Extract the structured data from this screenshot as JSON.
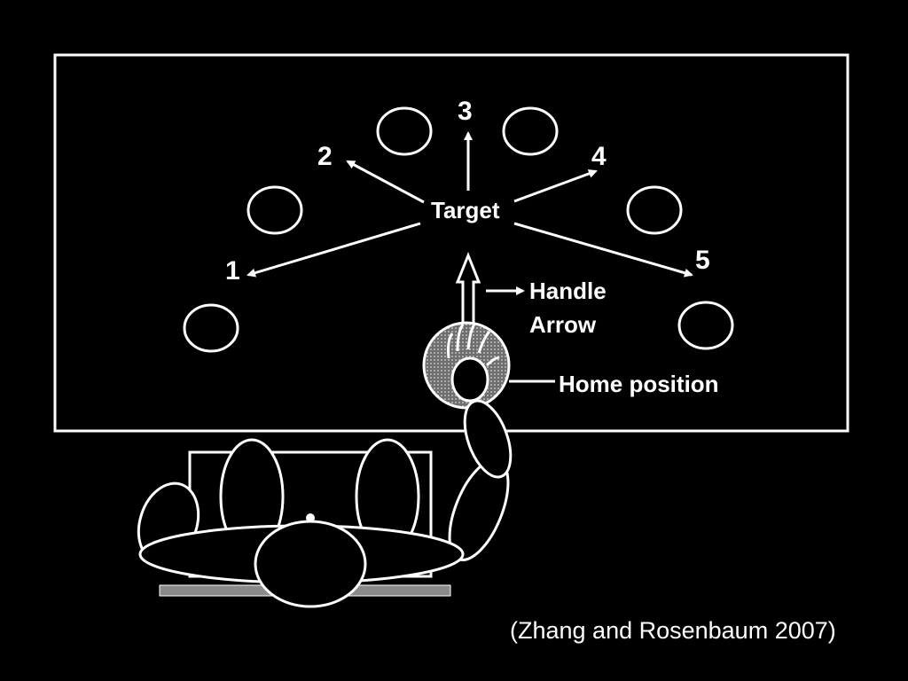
{
  "diagram": {
    "targets": [
      {
        "number": "1"
      },
      {
        "number": "2"
      },
      {
        "number": "3"
      },
      {
        "number": "4"
      },
      {
        "number": "5"
      }
    ],
    "target_label": "Target",
    "handle_label": "Handle",
    "arrow_label": "Arrow",
    "home_label": "Home position",
    "citation": "(Zhang and Rosenbaum 2007)"
  },
  "colors": {
    "background": "#000000",
    "foreground": "#ffffff",
    "home_ring": "#8a8a8a"
  }
}
